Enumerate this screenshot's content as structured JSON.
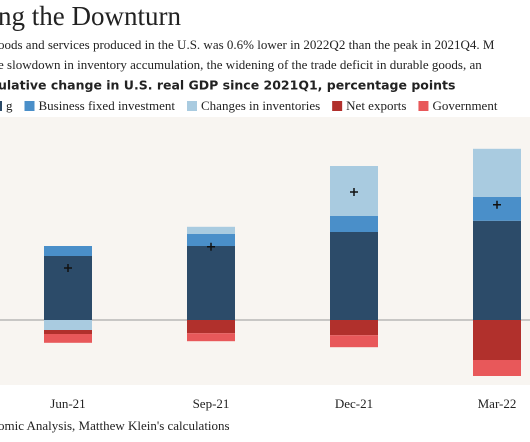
{
  "chart_data": {
    "type": "bar",
    "stacked": true,
    "title": "ng the Downturn",
    "subtitle": [
      "oods and services produced in the U.S. was 0.6% lower in 2022Q2 than the peak in 2021Q4. M",
      "e slowdown in inventory accumulation, the widening of the trade deficit in durable goods, an"
    ],
    "chart_subtitle": "ulative change in U.S. real GDP since 2021Q1, percentage points",
    "source": "omic Analysis, Matthew Klein's calculations",
    "categories": [
      "Jun-21",
      "Sep-21",
      "Dec-21",
      "Mar-22"
    ],
    "series": [
      {
        "name": "g",
        "color": "#2c4b69",
        "values": [
          1.6,
          1.85,
          2.2,
          2.48
        ]
      },
      {
        "name": "Business fixed investment",
        "color": "#4a8fc9",
        "values": [
          0.25,
          0.3,
          0.4,
          0.6
        ]
      },
      {
        "name": "Changes in inventories",
        "color": "#a9cbe0",
        "values": [
          -0.25,
          0.18,
          1.25,
          1.2
        ]
      },
      {
        "name": "Net exports",
        "color": "#b1302c",
        "values": [
          -0.1,
          -0.33,
          -0.38,
          -1.0
        ]
      },
      {
        "name": "Government",
        "color": "#e8585a",
        "values": [
          -0.22,
          -0.2,
          -0.3,
          -0.4
        ]
      }
    ],
    "net_values": [
      1.3,
      1.83,
      3.2,
      2.88
    ],
    "ylim": [
      -1.6,
      5
    ]
  }
}
